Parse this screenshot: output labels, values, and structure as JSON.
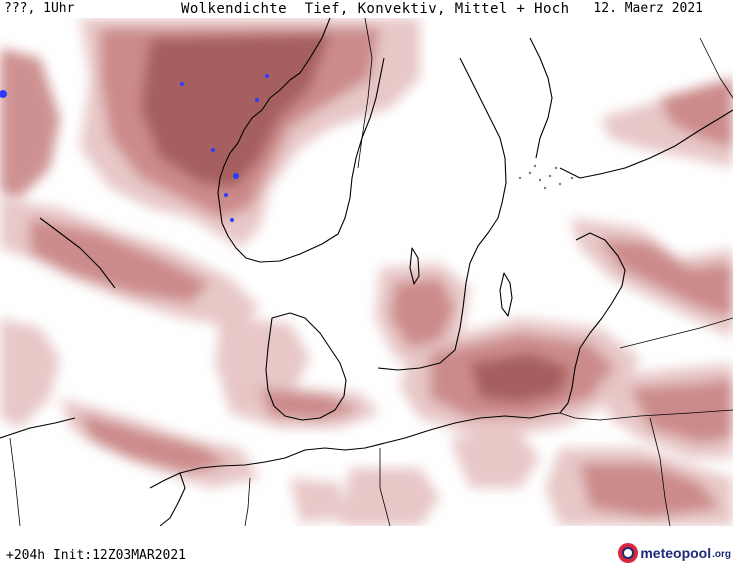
{
  "header": {
    "left": "???, 1Uhr",
    "title": "Wolkendichte  Tief, Konvektiv, Mittel + Hoch",
    "date": "12. Maerz 2021"
  },
  "footer": {
    "run_info": "+204h Init:12Z03MAR2021",
    "logo_text": "meteopool",
    "logo_tld": ".org"
  },
  "colors": {
    "cloud_light": "#e7c4c4",
    "cloud_medium": "#c98585",
    "cloud_dark": "#a05757",
    "cloud_darkest": "#8b3f3f",
    "precip_blue": "#2a3cff",
    "coastline": "#000000",
    "logo_red": "#d7263d",
    "logo_blue": "#1e2a78"
  },
  "map": {
    "parameter": "Wolkendichte",
    "region": "North Sea / Scandinavia / Baltic",
    "icons": [
      "meteopool-logo-icon"
    ]
  }
}
